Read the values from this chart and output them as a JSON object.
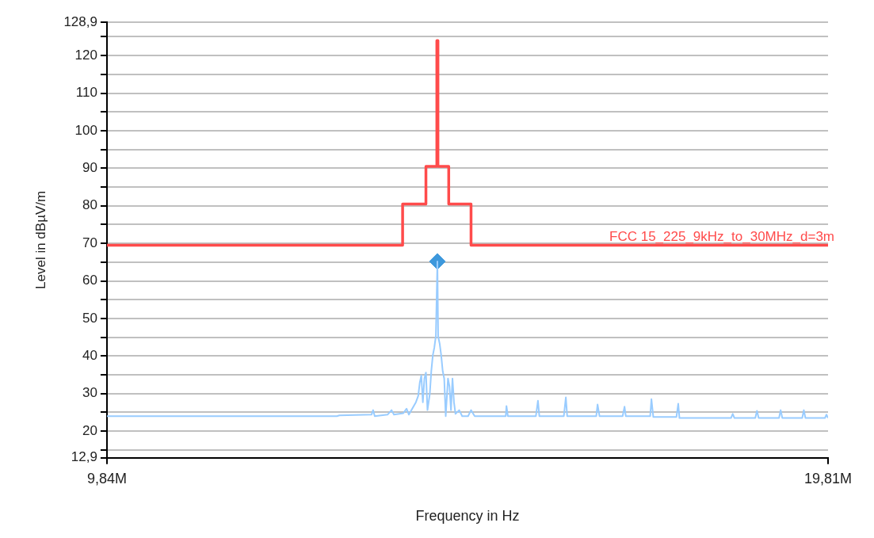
{
  "chart_data": {
    "type": "line",
    "xlabel": "Frequency in Hz",
    "ylabel": "Level in dBµV/m",
    "log": "x",
    "grid": "y",
    "xlim": [
      9840000,
      19810000
    ],
    "xticks": [
      {
        "value": 9840000,
        "label": "9,84M"
      },
      {
        "value": 19810000,
        "label": "19,81M"
      }
    ],
    "ylim": [
      12.9,
      128.9
    ],
    "yticks": [
      {
        "value": 12.9,
        "label": "12,9"
      },
      {
        "value": 15,
        "label": null
      },
      20,
      {
        "value": 25,
        "label": null
      },
      30,
      {
        "value": 35,
        "label": null
      },
      40,
      {
        "value": 45,
        "label": null
      },
      50,
      {
        "value": 55,
        "label": null
      },
      60,
      {
        "value": 65,
        "label": null
      },
      70,
      {
        "value": 75,
        "label": null
      },
      80,
      {
        "value": 85,
        "label": null
      },
      90,
      {
        "value": 95,
        "label": null
      },
      100,
      {
        "value": 105,
        "label": null
      },
      110,
      {
        "value": 115,
        "label": null
      },
      120,
      {
        "value": 125,
        "label": null
      },
      {
        "value": 128.9,
        "label": "128,9"
      }
    ],
    "series": [
      {
        "color": "#99ccff",
        "x": [
          9840000,
          12300000,
          12330000,
          12720000,
          12740000,
          12760000,
          12920000,
          12970000,
          13000000,
          13120000,
          13160000,
          13190000,
          13280000,
          13310000,
          13330000,
          13350000,
          13370000,
          13390000,
          13410000,
          13430000,
          13460000,
          13480000,
          13500000,
          13520000,
          13540000,
          13560000,
          13570000,
          13590000,
          13610000,
          13630000,
          13650000,
          13670000,
          13700000,
          13720000,
          13740000,
          13760000,
          13780000,
          13800000,
          13850000,
          13890000,
          13970000,
          14010000,
          14060000,
          14490000,
          14500000,
          14520000,
          14920000,
          14950000,
          14970000,
          15330000,
          15360000,
          15380000,
          15820000,
          15840000,
          15870000,
          16230000,
          16260000,
          16280000,
          16670000,
          16690000,
          16720000,
          17100000,
          17130000,
          17150000,
          17200000,
          17640000,
          18030000,
          18060000,
          18090000,
          18460000,
          18490000,
          18520000,
          18890000,
          18920000,
          18950000,
          19320000,
          19350000,
          19380000,
          19750000,
          19780000,
          19810000
        ],
        "values": [
          24.0,
          24.0,
          24.2,
          24.4,
          25.6,
          24.0,
          24.4,
          25.6,
          24.4,
          24.8,
          26.0,
          24.4,
          27.7,
          29.4,
          32.9,
          34.8,
          27.7,
          34.0,
          35.6,
          25.6,
          29.8,
          36.0,
          40.2,
          42.3,
          45.4,
          65.2,
          45.2,
          43.3,
          40.2,
          36.0,
          34.0,
          24.0,
          34.0,
          31.9,
          25.6,
          34.0,
          27.7,
          24.6,
          25.6,
          24.0,
          24.0,
          25.6,
          24.0,
          24.0,
          26.7,
          24.0,
          24.0,
          28.1,
          24.0,
          24.0,
          29.0,
          24.0,
          24.0,
          27.1,
          24.0,
          24.0,
          26.5,
          24.0,
          24.0,
          28.5,
          23.8,
          23.8,
          27.3,
          23.5,
          23.5,
          23.5,
          23.5,
          24.6,
          23.5,
          23.5,
          25.4,
          23.5,
          23.5,
          25.6,
          23.5,
          23.5,
          25.6,
          23.5,
          23.5,
          24.4,
          23.5
        ]
      },
      {
        "type": "step",
        "name": "FCC 15_225_9kHz_to_30MHz_d=3m",
        "color": "#ff4b4b",
        "x": [
          9840000,
          13110000,
          13410000,
          13553000,
          13567000,
          13710000,
          14010000,
          19810000
        ],
        "values": [
          69.5,
          80.5,
          90.5,
          124.0,
          90.5,
          80.5,
          69.5,
          69.5
        ]
      },
      {
        "type": "scatter",
        "marker": "diamond",
        "color": "#3d98dc",
        "x": [
          13560000
        ],
        "values": [
          65.2
        ]
      }
    ]
  }
}
